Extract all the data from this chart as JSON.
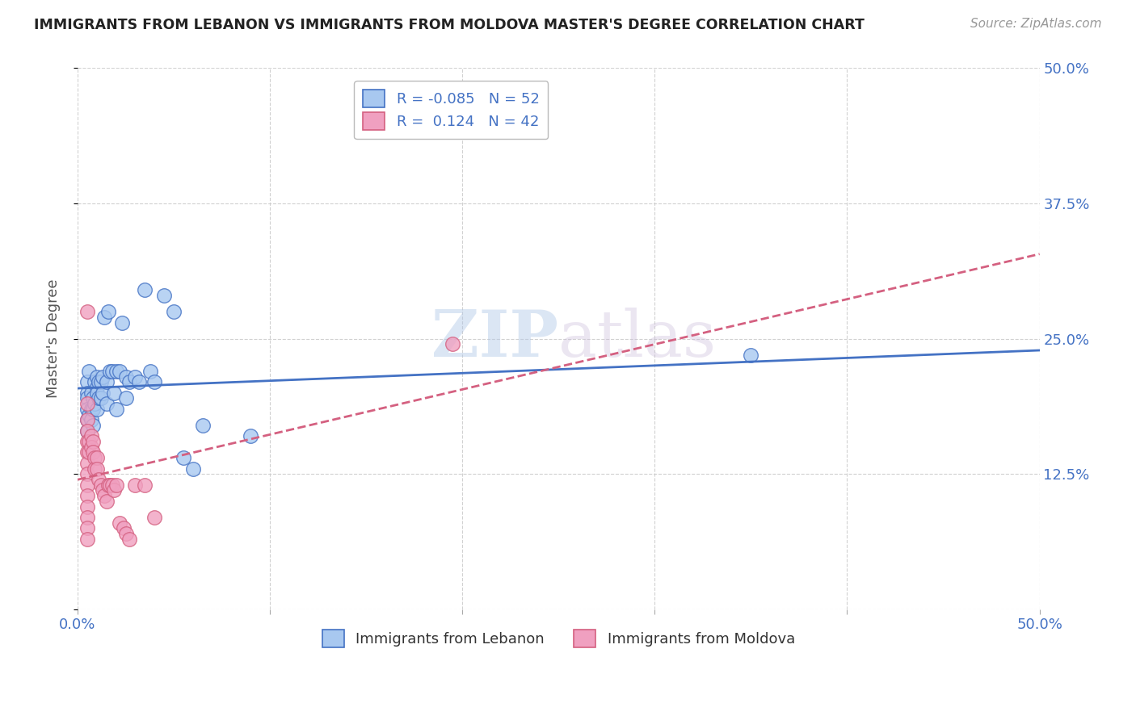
{
  "title": "IMMIGRANTS FROM LEBANON VS IMMIGRANTS FROM MOLDOVA MASTER'S DEGREE CORRELATION CHART",
  "source": "Source: ZipAtlas.com",
  "ylabel": "Master's Degree",
  "xlim": [
    0.0,
    0.5
  ],
  "ylim": [
    0.0,
    0.5
  ],
  "xtick_positions": [
    0.0,
    0.1,
    0.2,
    0.3,
    0.4,
    0.5
  ],
  "xtick_labels": [
    "0.0%",
    "",
    "",
    "",
    "",
    "50.0%"
  ],
  "ytick_positions": [
    0.0,
    0.125,
    0.25,
    0.375,
    0.5
  ],
  "ytick_labels_right": [
    "",
    "12.5%",
    "25.0%",
    "37.5%",
    "50.0%"
  ],
  "color_lebanon": "#A8C8F0",
  "color_moldova": "#F0A0C0",
  "line_color_lebanon": "#4472C4",
  "line_color_moldova": "#D46080",
  "legend_r_lebanon": "-0.085",
  "legend_n_lebanon": "52",
  "legend_r_moldova": "0.124",
  "legend_n_moldova": "42",
  "lebanon_x": [
    0.005,
    0.005,
    0.005,
    0.005,
    0.005,
    0.005,
    0.006,
    0.006,
    0.007,
    0.007,
    0.007,
    0.008,
    0.008,
    0.008,
    0.009,
    0.009,
    0.01,
    0.01,
    0.01,
    0.01,
    0.011,
    0.011,
    0.012,
    0.012,
    0.013,
    0.013,
    0.014,
    0.015,
    0.015,
    0.016,
    0.017,
    0.018,
    0.019,
    0.02,
    0.02,
    0.022,
    0.023,
    0.025,
    0.025,
    0.027,
    0.03,
    0.032,
    0.035,
    0.038,
    0.04,
    0.045,
    0.05,
    0.055,
    0.06,
    0.065,
    0.09,
    0.35
  ],
  "lebanon_y": [
    0.21,
    0.2,
    0.195,
    0.185,
    0.175,
    0.165,
    0.22,
    0.18,
    0.2,
    0.185,
    0.175,
    0.195,
    0.185,
    0.17,
    0.21,
    0.19,
    0.215,
    0.205,
    0.2,
    0.185,
    0.21,
    0.195,
    0.21,
    0.195,
    0.215,
    0.2,
    0.27,
    0.21,
    0.19,
    0.275,
    0.22,
    0.22,
    0.2,
    0.22,
    0.185,
    0.22,
    0.265,
    0.215,
    0.195,
    0.21,
    0.215,
    0.21,
    0.295,
    0.22,
    0.21,
    0.29,
    0.275,
    0.14,
    0.13,
    0.17,
    0.16,
    0.235
  ],
  "moldova_x": [
    0.005,
    0.005,
    0.005,
    0.005,
    0.005,
    0.005,
    0.005,
    0.005,
    0.005,
    0.005,
    0.005,
    0.005,
    0.005,
    0.006,
    0.006,
    0.007,
    0.007,
    0.008,
    0.008,
    0.009,
    0.009,
    0.01,
    0.01,
    0.011,
    0.012,
    0.013,
    0.014,
    0.015,
    0.016,
    0.017,
    0.018,
    0.019,
    0.02,
    0.022,
    0.024,
    0.025,
    0.027,
    0.03,
    0.035,
    0.04,
    0.195,
    0.005
  ],
  "moldova_y": [
    0.19,
    0.175,
    0.165,
    0.155,
    0.145,
    0.135,
    0.125,
    0.115,
    0.105,
    0.095,
    0.085,
    0.075,
    0.065,
    0.155,
    0.145,
    0.16,
    0.15,
    0.155,
    0.145,
    0.14,
    0.13,
    0.14,
    0.13,
    0.12,
    0.115,
    0.11,
    0.105,
    0.1,
    0.115,
    0.115,
    0.115,
    0.11,
    0.115,
    0.08,
    0.075,
    0.07,
    0.065,
    0.115,
    0.115,
    0.085,
    0.245,
    0.275
  ]
}
